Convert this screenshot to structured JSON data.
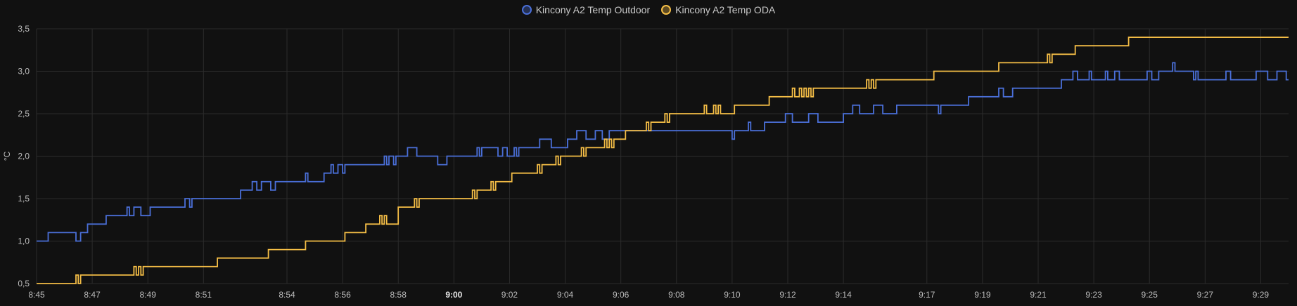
{
  "chart_data": {
    "type": "line",
    "ylabel": "°C",
    "ylim": [
      0.5,
      3.5
    ],
    "y_ticks": [
      "0,5",
      "1,0",
      "1,5",
      "2,0",
      "2,5",
      "3,0",
      "3,5"
    ],
    "x_range": [
      "8:45",
      "9:30"
    ],
    "x_ticks": [
      {
        "t": "8:45",
        "label": "8:45"
      },
      {
        "t": "8:47",
        "label": "8:47"
      },
      {
        "t": "8:49",
        "label": "8:49"
      },
      {
        "t": "8:51",
        "label": "8:51"
      },
      {
        "t": "8:54",
        "label": "8:54"
      },
      {
        "t": "8:56",
        "label": "8:56"
      },
      {
        "t": "8:58",
        "label": "8:58"
      },
      {
        "t": "9:00",
        "label": "9:00",
        "bold": true
      },
      {
        "t": "9:02",
        "label": "9:02"
      },
      {
        "t": "9:04",
        "label": "9:04"
      },
      {
        "t": "9:06",
        "label": "9:06"
      },
      {
        "t": "9:08",
        "label": "9:08"
      },
      {
        "t": "9:10",
        "label": "9:10"
      },
      {
        "t": "9:12",
        "label": "9:12"
      },
      {
        "t": "9:14",
        "label": "9:14"
      },
      {
        "t": "9:17",
        "label": "9:17"
      },
      {
        "t": "9:19",
        "label": "9:19"
      },
      {
        "t": "9:21",
        "label": "9:21"
      },
      {
        "t": "9:23",
        "label": "9:23"
      },
      {
        "t": "9:25",
        "label": "9:25"
      },
      {
        "t": "9:27",
        "label": "9:27"
      },
      {
        "t": "9:29",
        "label": "9:29"
      }
    ],
    "grid": true,
    "legend_position": "top-center",
    "series": [
      {
        "name": "Kincony A2 Temp Outdoor",
        "color": "#4a6fd8",
        "step": true,
        "points": [
          [
            "8:45:00",
            1.0
          ],
          [
            "8:45:25",
            1.1
          ],
          [
            "8:46:25",
            1.0
          ],
          [
            "8:46:35",
            1.1
          ],
          [
            "8:46:50",
            1.2
          ],
          [
            "8:47:30",
            1.3
          ],
          [
            "8:48:15",
            1.4
          ],
          [
            "8:48:20",
            1.3
          ],
          [
            "8:48:30",
            1.4
          ],
          [
            "8:48:45",
            1.3
          ],
          [
            "8:49:05",
            1.4
          ],
          [
            "8:50:20",
            1.5
          ],
          [
            "8:50:30",
            1.4
          ],
          [
            "8:50:35",
            1.5
          ],
          [
            "8:52:20",
            1.6
          ],
          [
            "8:52:45",
            1.7
          ],
          [
            "8:52:55",
            1.6
          ],
          [
            "8:53:05",
            1.7
          ],
          [
            "8:53:25",
            1.6
          ],
          [
            "8:53:35",
            1.7
          ],
          [
            "8:54:40",
            1.8
          ],
          [
            "8:54:45",
            1.7
          ],
          [
            "8:55:20",
            1.8
          ],
          [
            "8:55:35",
            1.9
          ],
          [
            "8:55:40",
            1.8
          ],
          [
            "8:55:50",
            1.9
          ],
          [
            "8:56:00",
            1.8
          ],
          [
            "8:56:05",
            1.9
          ],
          [
            "8:57:30",
            2.0
          ],
          [
            "8:57:35",
            1.9
          ],
          [
            "8:57:40",
            2.0
          ],
          [
            "8:57:50",
            1.9
          ],
          [
            "8:57:55",
            2.0
          ],
          [
            "8:58:20",
            2.1
          ],
          [
            "8:58:40",
            2.0
          ],
          [
            "8:59:25",
            1.9
          ],
          [
            "8:59:45",
            2.0
          ],
          [
            "9:00:50",
            2.1
          ],
          [
            "9:00:55",
            2.0
          ],
          [
            "9:01:00",
            2.1
          ],
          [
            "9:01:35",
            2.0
          ],
          [
            "9:01:45",
            2.1
          ],
          [
            "9:01:55",
            2.0
          ],
          [
            "9:02:10",
            2.1
          ],
          [
            "9:02:15",
            2.0
          ],
          [
            "9:02:20",
            2.1
          ],
          [
            "9:03:05",
            2.2
          ],
          [
            "9:03:30",
            2.1
          ],
          [
            "9:04:05",
            2.2
          ],
          [
            "9:04:25",
            2.3
          ],
          [
            "9:04:45",
            2.2
          ],
          [
            "9:05:05",
            2.3
          ],
          [
            "9:05:20",
            2.2
          ],
          [
            "9:05:35",
            2.3
          ],
          [
            "9:07:15",
            2.3
          ],
          [
            "9:08:10",
            2.3
          ],
          [
            "9:09:00",
            2.3
          ],
          [
            "9:10:00",
            2.2
          ],
          [
            "9:10:05",
            2.3
          ],
          [
            "9:10:35",
            2.4
          ],
          [
            "9:10:40",
            2.3
          ],
          [
            "9:11:05",
            2.3
          ],
          [
            "9:11:10",
            2.4
          ],
          [
            "9:11:55",
            2.5
          ],
          [
            "9:12:10",
            2.4
          ],
          [
            "9:12:45",
            2.5
          ],
          [
            "9:13:05",
            2.4
          ],
          [
            "9:14:00",
            2.5
          ],
          [
            "9:14:20",
            2.6
          ],
          [
            "9:14:35",
            2.5
          ],
          [
            "9:15:05",
            2.6
          ],
          [
            "9:15:25",
            2.5
          ],
          [
            "9:15:55",
            2.6
          ],
          [
            "9:17:25",
            2.5
          ],
          [
            "9:17:30",
            2.6
          ],
          [
            "9:18:30",
            2.7
          ],
          [
            "9:19:35",
            2.8
          ],
          [
            "9:19:45",
            2.7
          ],
          [
            "9:20:05",
            2.8
          ],
          [
            "9:21:50",
            2.9
          ],
          [
            "9:22:15",
            3.0
          ],
          [
            "9:22:25",
            2.9
          ],
          [
            "9:22:50",
            3.0
          ],
          [
            "9:22:55",
            2.9
          ],
          [
            "9:23:25",
            3.0
          ],
          [
            "9:23:30",
            2.9
          ],
          [
            "9:23:45",
            3.0
          ],
          [
            "9:23:55",
            2.9
          ],
          [
            "9:24:55",
            3.0
          ],
          [
            "9:25:05",
            2.9
          ],
          [
            "9:25:20",
            3.0
          ],
          [
            "9:25:50",
            3.1
          ],
          [
            "9:25:55",
            3.0
          ],
          [
            "9:26:35",
            2.9
          ],
          [
            "9:26:40",
            3.0
          ],
          [
            "9:26:45",
            2.9
          ],
          [
            "9:27:45",
            3.0
          ],
          [
            "9:27:55",
            2.9
          ],
          [
            "9:28:50",
            3.0
          ],
          [
            "9:29:15",
            2.9
          ],
          [
            "9:29:35",
            3.0
          ],
          [
            "9:29:55",
            2.9
          ],
          [
            "9:30:00",
            2.9
          ]
        ]
      },
      {
        "name": "Kincony A2 Temp ODA",
        "color": "#f5be46",
        "step": true,
        "points": [
          [
            "8:45:00",
            0.5
          ],
          [
            "8:46:25",
            0.6
          ],
          [
            "8:46:30",
            0.5
          ],
          [
            "8:46:35",
            0.6
          ],
          [
            "8:48:30",
            0.7
          ],
          [
            "8:48:35",
            0.6
          ],
          [
            "8:48:40",
            0.7
          ],
          [
            "8:48:45",
            0.6
          ],
          [
            "8:48:50",
            0.7
          ],
          [
            "8:51:30",
            0.8
          ],
          [
            "8:53:20",
            0.9
          ],
          [
            "8:54:40",
            1.0
          ],
          [
            "8:56:05",
            1.1
          ],
          [
            "8:56:50",
            1.2
          ],
          [
            "8:57:20",
            1.3
          ],
          [
            "8:57:25",
            1.2
          ],
          [
            "8:57:30",
            1.3
          ],
          [
            "8:57:35",
            1.2
          ],
          [
            "8:58:00",
            1.4
          ],
          [
            "8:58:35",
            1.5
          ],
          [
            "8:58:40",
            1.4
          ],
          [
            "8:58:45",
            1.5
          ],
          [
            "9:00:40",
            1.6
          ],
          [
            "9:00:45",
            1.5
          ],
          [
            "9:00:50",
            1.6
          ],
          [
            "9:01:20",
            1.7
          ],
          [
            "9:01:25",
            1.6
          ],
          [
            "9:01:30",
            1.7
          ],
          [
            "9:02:05",
            1.8
          ],
          [
            "9:03:00",
            1.9
          ],
          [
            "9:03:05",
            1.8
          ],
          [
            "9:03:10",
            1.9
          ],
          [
            "9:03:40",
            2.0
          ],
          [
            "9:03:45",
            1.9
          ],
          [
            "9:03:50",
            2.0
          ],
          [
            "9:04:35",
            2.1
          ],
          [
            "9:04:40",
            2.0
          ],
          [
            "9:04:45",
            2.1
          ],
          [
            "9:05:25",
            2.2
          ],
          [
            "9:05:30",
            2.1
          ],
          [
            "9:05:35",
            2.2
          ],
          [
            "9:05:40",
            2.1
          ],
          [
            "9:05:45",
            2.2
          ],
          [
            "9:06:10",
            2.3
          ],
          [
            "9:06:55",
            2.4
          ],
          [
            "9:07:00",
            2.3
          ],
          [
            "9:07:05",
            2.4
          ],
          [
            "9:07:35",
            2.5
          ],
          [
            "9:07:40",
            2.4
          ],
          [
            "9:07:45",
            2.5
          ],
          [
            "9:09:00",
            2.6
          ],
          [
            "9:09:05",
            2.5
          ],
          [
            "9:09:20",
            2.6
          ],
          [
            "9:09:25",
            2.5
          ],
          [
            "9:09:30",
            2.6
          ],
          [
            "9:09:35",
            2.5
          ],
          [
            "9:10:05",
            2.6
          ],
          [
            "9:11:20",
            2.7
          ],
          [
            "9:12:10",
            2.8
          ],
          [
            "9:12:15",
            2.7
          ],
          [
            "9:12:25",
            2.8
          ],
          [
            "9:12:30",
            2.7
          ],
          [
            "9:12:35",
            2.8
          ],
          [
            "9:12:40",
            2.7
          ],
          [
            "9:12:45",
            2.8
          ],
          [
            "9:12:50",
            2.7
          ],
          [
            "9:12:55",
            2.8
          ],
          [
            "9:14:50",
            2.9
          ],
          [
            "9:14:55",
            2.8
          ],
          [
            "9:15:00",
            2.9
          ],
          [
            "9:15:05",
            2.8
          ],
          [
            "9:15:10",
            2.9
          ],
          [
            "9:17:15",
            3.0
          ],
          [
            "9:19:35",
            3.1
          ],
          [
            "9:21:20",
            3.2
          ],
          [
            "9:21:25",
            3.1
          ],
          [
            "9:21:30",
            3.2
          ],
          [
            "9:22:20",
            3.3
          ],
          [
            "9:24:15",
            3.4
          ],
          [
            "9:30:00",
            3.4
          ]
        ]
      }
    ]
  }
}
